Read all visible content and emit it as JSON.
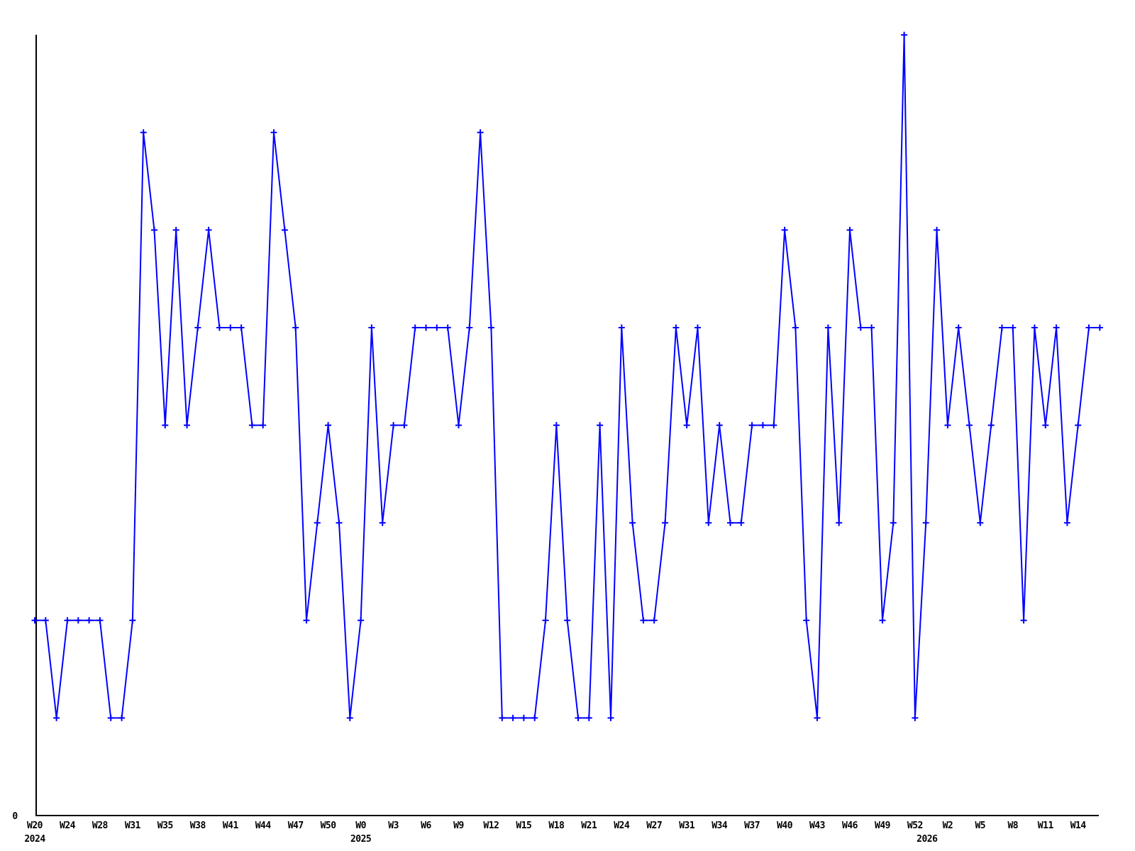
{
  "figure": {
    "background_color": "#ffffff",
    "axis_color": "#000000",
    "series_color": "#0000ff",
    "y_axis_zero_label": "0"
  },
  "chart_data": {
    "type": "line",
    "title": "",
    "xlabel": "",
    "ylabel": "",
    "legend": "none",
    "grid": false,
    "marker": "plus",
    "series_color": "#0000ff",
    "ylim": [
      0,
      8
    ],
    "y_axis_zero_label": "0",
    "n_points": 99,
    "values": [
      2,
      2,
      1,
      2,
      2,
      2,
      2,
      1,
      1,
      2,
      7,
      6,
      4,
      6,
      4,
      5,
      6,
      5,
      5,
      5,
      4,
      4,
      7,
      6,
      5,
      2,
      3,
      4,
      3,
      1,
      2,
      5,
      3,
      4,
      4,
      5,
      5,
      5,
      5,
      4,
      5,
      7,
      5,
      1,
      1,
      1,
      1,
      2,
      4,
      2,
      1,
      1,
      4,
      1,
      5,
      3,
      2,
      2,
      3,
      5,
      4,
      5,
      3,
      4,
      3,
      3,
      4,
      4,
      4,
      6,
      5,
      2,
      1,
      5,
      3,
      6,
      5,
      5,
      2,
      3,
      8,
      1,
      3,
      6,
      4,
      5,
      4,
      3,
      4,
      5,
      5,
      2,
      5,
      4,
      5,
      3,
      4,
      5,
      5
    ],
    "x_tick_every": 3,
    "x_tick_labels": [
      "W20",
      "W24",
      "W28",
      "W31",
      "W35",
      "W38",
      "W41",
      "W44",
      "W47",
      "W50",
      "W0",
      "W3",
      "W6",
      "W9",
      "W12",
      "W15",
      "W18",
      "W21",
      "W24",
      "W27",
      "W31",
      "W34",
      "W37",
      "W40",
      "W43",
      "W46",
      "W49",
      "W52",
      "W2",
      "W5",
      "W8",
      "W11",
      "W14"
    ],
    "year_labels": [
      {
        "text": "2024",
        "point_index": 0
      },
      {
        "text": "2025",
        "point_index": 30
      },
      {
        "text": "2026",
        "point_index": 82.1
      }
    ]
  }
}
